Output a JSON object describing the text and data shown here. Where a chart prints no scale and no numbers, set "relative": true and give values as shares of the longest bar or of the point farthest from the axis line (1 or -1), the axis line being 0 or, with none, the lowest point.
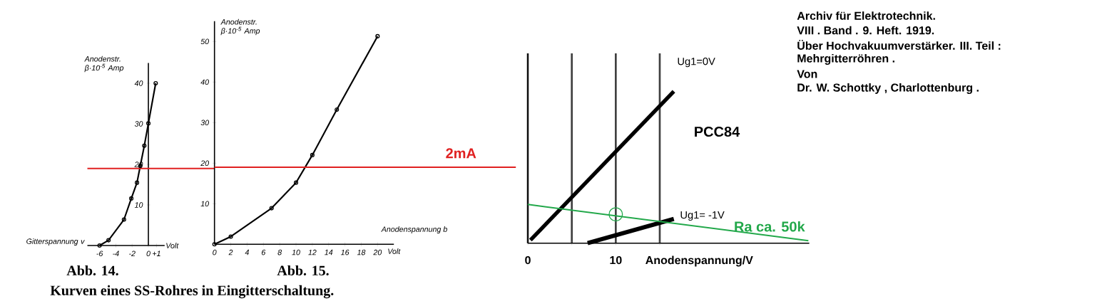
{
  "chart_data": [
    {
      "type": "line",
      "title": "Abb. 14.",
      "xlabel": "Gitterspannung v",
      "ylabel": "Anodenstr. β·10$^{-5}$ Amp",
      "annotations": [
        "Volt",
        "Kurven eines SS-Rohres in Eingitterschaltung."
      ],
      "x": [
        -6,
        -4.9,
        -3,
        -2.1,
        -1.4,
        -1,
        -0.5,
        0,
        0.9
      ],
      "values": [
        0,
        1.3,
        6.4,
        11.6,
        15.5,
        19.6,
        24.6,
        30.1,
        40
      ],
      "color": "#000000",
      "marker": "circle",
      "xlim": [
        -7.5,
        2
      ],
      "ylim": [
        0,
        45
      ],
      "xticks": [
        -6,
        -4,
        -2,
        0,
        {
          "value": 1,
          "label": "+1"
        }
      ],
      "yticks": [
        10,
        20,
        30,
        40
      ],
      "ref_lines": [
        {
          "axis": "y",
          "value": 19,
          "color": "#e02020"
        }
      ]
    },
    {
      "type": "line",
      "title": "Abb. 15.",
      "xlabel": "Anodenspannung b",
      "ylabel": "Anodenstr. β·10$^{-5}$ Amp",
      "annotations": [
        "Volt"
      ],
      "x": [
        0,
        2,
        7,
        10,
        12,
        15,
        20
      ],
      "values": [
        0,
        1.9,
        8.9,
        15.2,
        22,
        33.2,
        51.3
      ],
      "color": "#000000",
      "marker": "circle",
      "xlim": [
        0,
        22
      ],
      "ylim": [
        0,
        55
      ],
      "xticks": [
        0,
        2,
        4,
        6,
        8,
        10,
        12,
        14,
        16,
        18,
        20
      ],
      "yticks": [
        10,
        20,
        30,
        40,
        50
      ],
      "ref_lines": [
        {
          "axis": "y",
          "value": 19,
          "label": "2mA",
          "color": "#e02020"
        }
      ]
    },
    {
      "type": "line",
      "title": "PCC84",
      "xlabel": "Anodenspannung/V",
      "relative": true,
      "grid": "x",
      "xlim": [
        0,
        32
      ],
      "xticks": [
        0,
        {
          "value": 5,
          "label": null
        },
        10,
        {
          "value": 15,
          "label": null
        }
      ],
      "annotations": [
        "Archiv für Elektrotechnik.",
        "VIII . Band . 9. Heft. 1919.",
        "Über Hochvakuumverstärker. III. Teil :",
        "Mehrgitterröhren .",
        "Von",
        "Dr. W. Schottky , Charlottenburg ."
      ],
      "series": [
        {
          "name": "Ug1=0V",
          "color": "#000000",
          "x": [
            0.3,
            16.6
          ],
          "values": [
            0.02,
            1.0
          ]
        },
        {
          "name": "Ug1= -1V",
          "color": "#000000",
          "x": [
            6.8,
            16.6
          ],
          "values": [
            0.0,
            0.16
          ]
        },
        {
          "name": "Ra ca. 50k",
          "color": "#22a84a",
          "x": [
            0,
            31.9
          ],
          "values": [
            0.255,
            0.016
          ]
        },
        {
          "type": "scatter",
          "marker": "circle",
          "color": "#22a84a",
          "x": [
            10
          ],
          "values": [
            0.19
          ]
        }
      ]
    }
  ]
}
